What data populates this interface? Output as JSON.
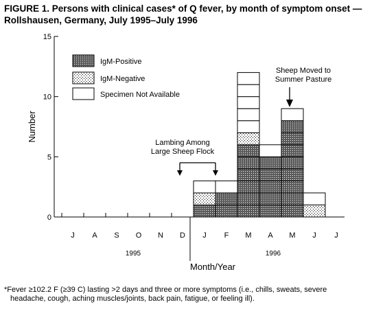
{
  "title_line1": "FIGURE 1. Persons with clinical cases* of Q fever, by month of symptom onset —",
  "title_line2": "Rollshausen, Germany, July 1995–July 1996",
  "footnote_line1": "*Fever ≥102.2 F (≥39 C) lasting >2 days and three or more symptoms (i.e., chills, sweats, severe",
  "footnote_line2": "headache, cough, aching muscles/joints, back pain, fatigue, or feeling ill).",
  "colors": {
    "stroke": "#000000",
    "background": "#ffffff"
  },
  "chart_data": {
    "type": "bar",
    "stacked": true,
    "categories": [
      "J",
      "A",
      "S",
      "O",
      "N",
      "D",
      "J",
      "F",
      "M",
      "A",
      "M",
      "J",
      "J"
    ],
    "year_labels": [
      "1995",
      "1996"
    ],
    "ylabel": "Number",
    "xlabel": "Month/Year",
    "ylim": [
      0,
      15
    ],
    "yticks": [
      0,
      5,
      10,
      15
    ],
    "grid": false,
    "legend_placement": "top-left",
    "series": [
      {
        "name": "IgM-Positive",
        "pattern": "dense-dots",
        "values": [
          0,
          0,
          0,
          0,
          0,
          0,
          1,
          2,
          6,
          5,
          8,
          0,
          0
        ]
      },
      {
        "name": "IgM-Negative",
        "pattern": "sparse-dots",
        "values": [
          0,
          0,
          0,
          0,
          0,
          0,
          1,
          0,
          1,
          0,
          0,
          1,
          0
        ]
      },
      {
        "name": "Specimen Not Available",
        "pattern": "white",
        "values": [
          0,
          0,
          0,
          0,
          0,
          0,
          1,
          1,
          5,
          1,
          1,
          1,
          0
        ]
      }
    ],
    "annotations": [
      {
        "text_lines": [
          "Lambing Among",
          "Large Sheep Flock"
        ],
        "between_categories": [
          5,
          6
        ]
      },
      {
        "text_lines": [
          "Sheep Moved to",
          "Summer Pasture"
        ],
        "at_category": 10
      }
    ]
  }
}
